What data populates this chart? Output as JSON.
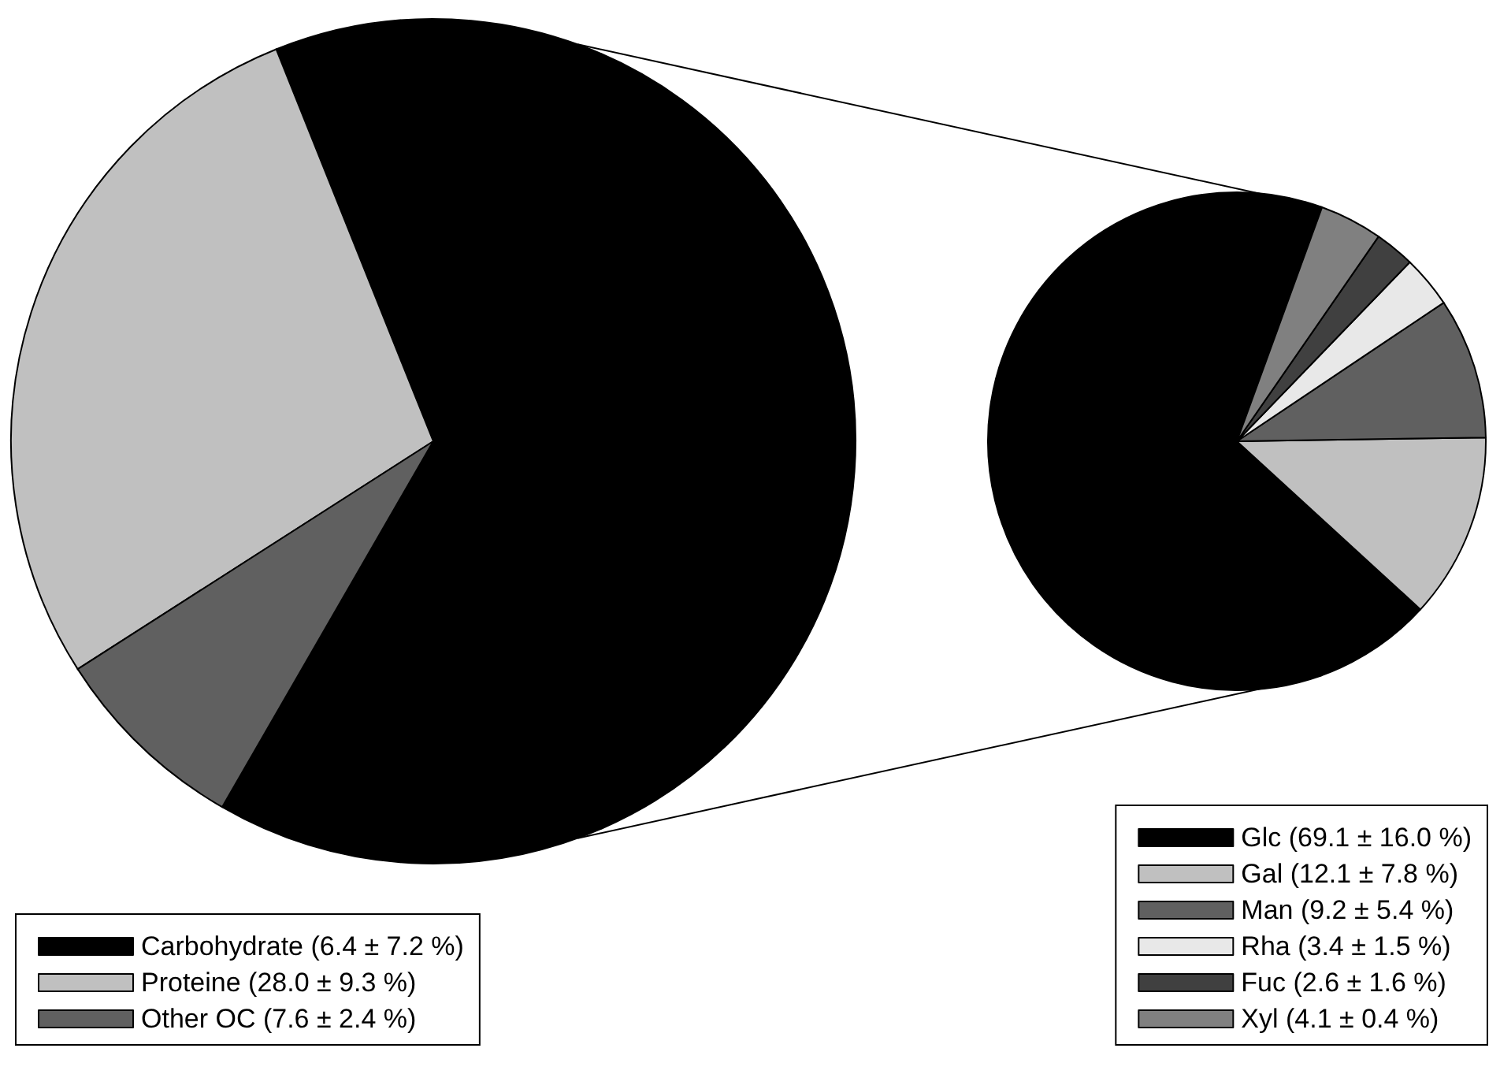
{
  "chart_data": [
    {
      "type": "pie",
      "categories": [
        "Carbohydrate (6.4 ± 7.2 %)",
        "Proteine (28.0 ± 9.3 %)",
        "Other OC (7.6 ± 2.4 %)"
      ],
      "values": [
        64.4,
        28.0,
        7.6
      ],
      "colors": [
        "#000000",
        "#c0c0c0",
        "#606060"
      ],
      "legend": "bottom left"
    },
    {
      "type": "pie",
      "categories": [
        "Glc (69.1 ± 16.0 %)",
        "Gal (12.1 ± 7.8 %)",
        "Man (9.2 ± 5.4 %)",
        "Rha (3.4 ± 1.5 %)",
        "Fuc (2.6 ± 1.6 %)",
        "Xyl (4.1 ± 0.4 %)"
      ],
      "values": [
        69.1,
        12.1,
        9.2,
        3.4,
        2.6,
        4.1
      ],
      "colors": [
        "#000000",
        "#c0c0c0",
        "#606060",
        "#e8e8e8",
        "#404040",
        "#808080"
      ],
      "legend": "bottom right"
    }
  ]
}
